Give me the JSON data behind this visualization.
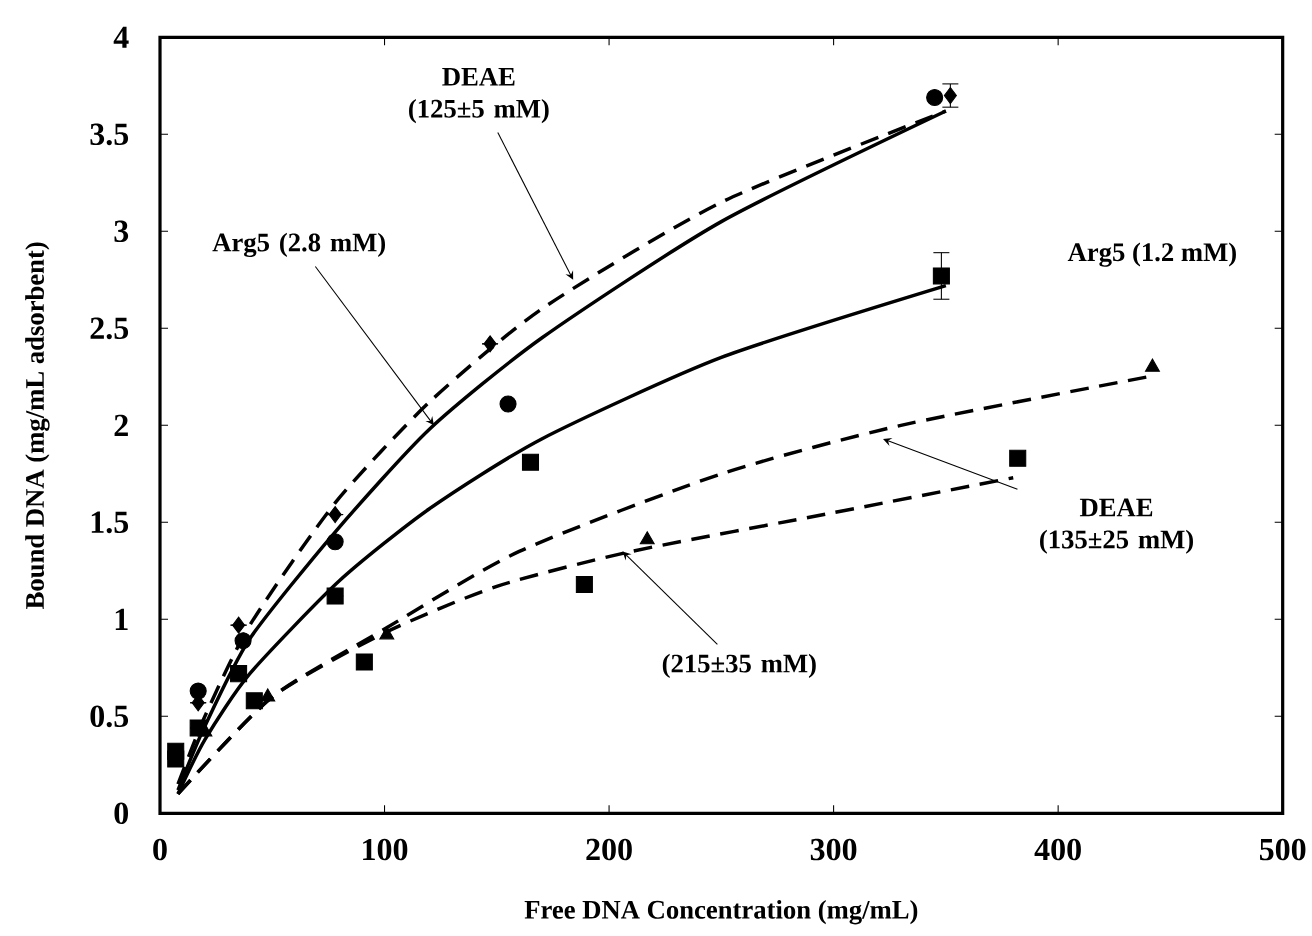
{
  "chart_data": {
    "type": "scatter",
    "xlabel": "Free DNA Concentration (mg/mL)",
    "ylabel": "Bound DNA (mg/mL adsorbent)",
    "xlim": [
      0,
      500
    ],
    "ylim": [
      0,
      4
    ],
    "xticks": [
      0,
      100,
      200,
      300,
      400,
      500
    ],
    "yticks": [
      0,
      0.5,
      1,
      1.5,
      2,
      2.5,
      3,
      3.5,
      4
    ],
    "grid": false,
    "series": [
      {
        "color": "#000000",
        "marker": "diamond",
        "x": [
          17,
          35,
          78,
          147,
          352
        ],
        "values": [
          0.57,
          0.97,
          1.54,
          2.42,
          3.7
        ],
        "errors": [
          null,
          null,
          null,
          null,
          0.06
        ]
      },
      {
        "color": "#000000",
        "marker": "circle",
        "x": [
          17,
          37,
          78,
          155,
          345
        ],
        "values": [
          0.63,
          0.89,
          1.4,
          2.11,
          3.69
        ]
      },
      {
        "color": "#000000",
        "marker": "square",
        "x": [
          7,
          17,
          35,
          78,
          165,
          348
        ],
        "values": [
          0.28,
          0.44,
          0.72,
          1.12,
          1.81,
          2.77
        ],
        "errors": [
          null,
          null,
          null,
          null,
          null,
          0.12
        ]
      },
      {
        "color": "#000000",
        "marker": "triangle",
        "x": [
          20,
          48,
          101,
          217,
          442
        ],
        "values": [
          0.42,
          0.6,
          0.92,
          1.41,
          2.3
        ]
      },
      {
        "color": "#000000",
        "marker": "square",
        "x": [
          7,
          42,
          91,
          189,
          382
        ],
        "values": [
          0.32,
          0.58,
          0.78,
          1.18,
          1.83
        ]
      },
      {
        "type": "line",
        "color": "#000000",
        "marker": "none",
        "line_style": "dashed",
        "x": [
          8,
          20,
          40,
          78,
          120,
          170,
          250,
          350
        ],
        "values": [
          0.15,
          0.5,
          0.97,
          1.6,
          2.12,
          2.6,
          3.15,
          3.62
        ]
      },
      {
        "type": "line",
        "color": "#000000",
        "marker": "none",
        "line_style": "solid",
        "x": [
          8,
          20,
          40,
          78,
          120,
          170,
          250,
          350
        ],
        "values": [
          0.12,
          0.45,
          0.9,
          1.45,
          1.98,
          2.45,
          3.05,
          3.62
        ]
      },
      {
        "type": "line",
        "color": "#000000",
        "marker": "none",
        "line_style": "solid",
        "x": [
          8,
          20,
          40,
          80,
          120,
          170,
          250,
          350
        ],
        "values": [
          0.1,
          0.38,
          0.72,
          1.2,
          1.57,
          1.93,
          2.35,
          2.72
        ]
      },
      {
        "type": "line",
        "color": "#000000",
        "marker": "none",
        "line_style": "dashed",
        "x": [
          8,
          50,
          100,
          160,
          250,
          330,
          440
        ],
        "values": [
          0.1,
          0.6,
          0.95,
          1.35,
          1.75,
          2.0,
          2.25
        ]
      },
      {
        "type": "line",
        "color": "#000000",
        "marker": "none",
        "line_style": "dashed",
        "x": [
          8,
          50,
          100,
          150,
          210,
          300,
          380
        ],
        "values": [
          0.1,
          0.6,
          0.93,
          1.17,
          1.35,
          1.55,
          1.73
        ]
      }
    ],
    "annotations": [
      {
        "text": "DEAE (125±5 mM)",
        "x": 184,
        "y": 2.75
      },
      {
        "text": "Arg5 (2.8 mM)",
        "x": 122,
        "y": 2.0
      },
      "Arg5 (1.2 mM)",
      {
        "text": "DEAE (135±25 mM)",
        "x": 322,
        "y": 1.93
      },
      {
        "text": "(215±35 mM)",
        "x": 206,
        "y": 1.35
      }
    ]
  }
}
